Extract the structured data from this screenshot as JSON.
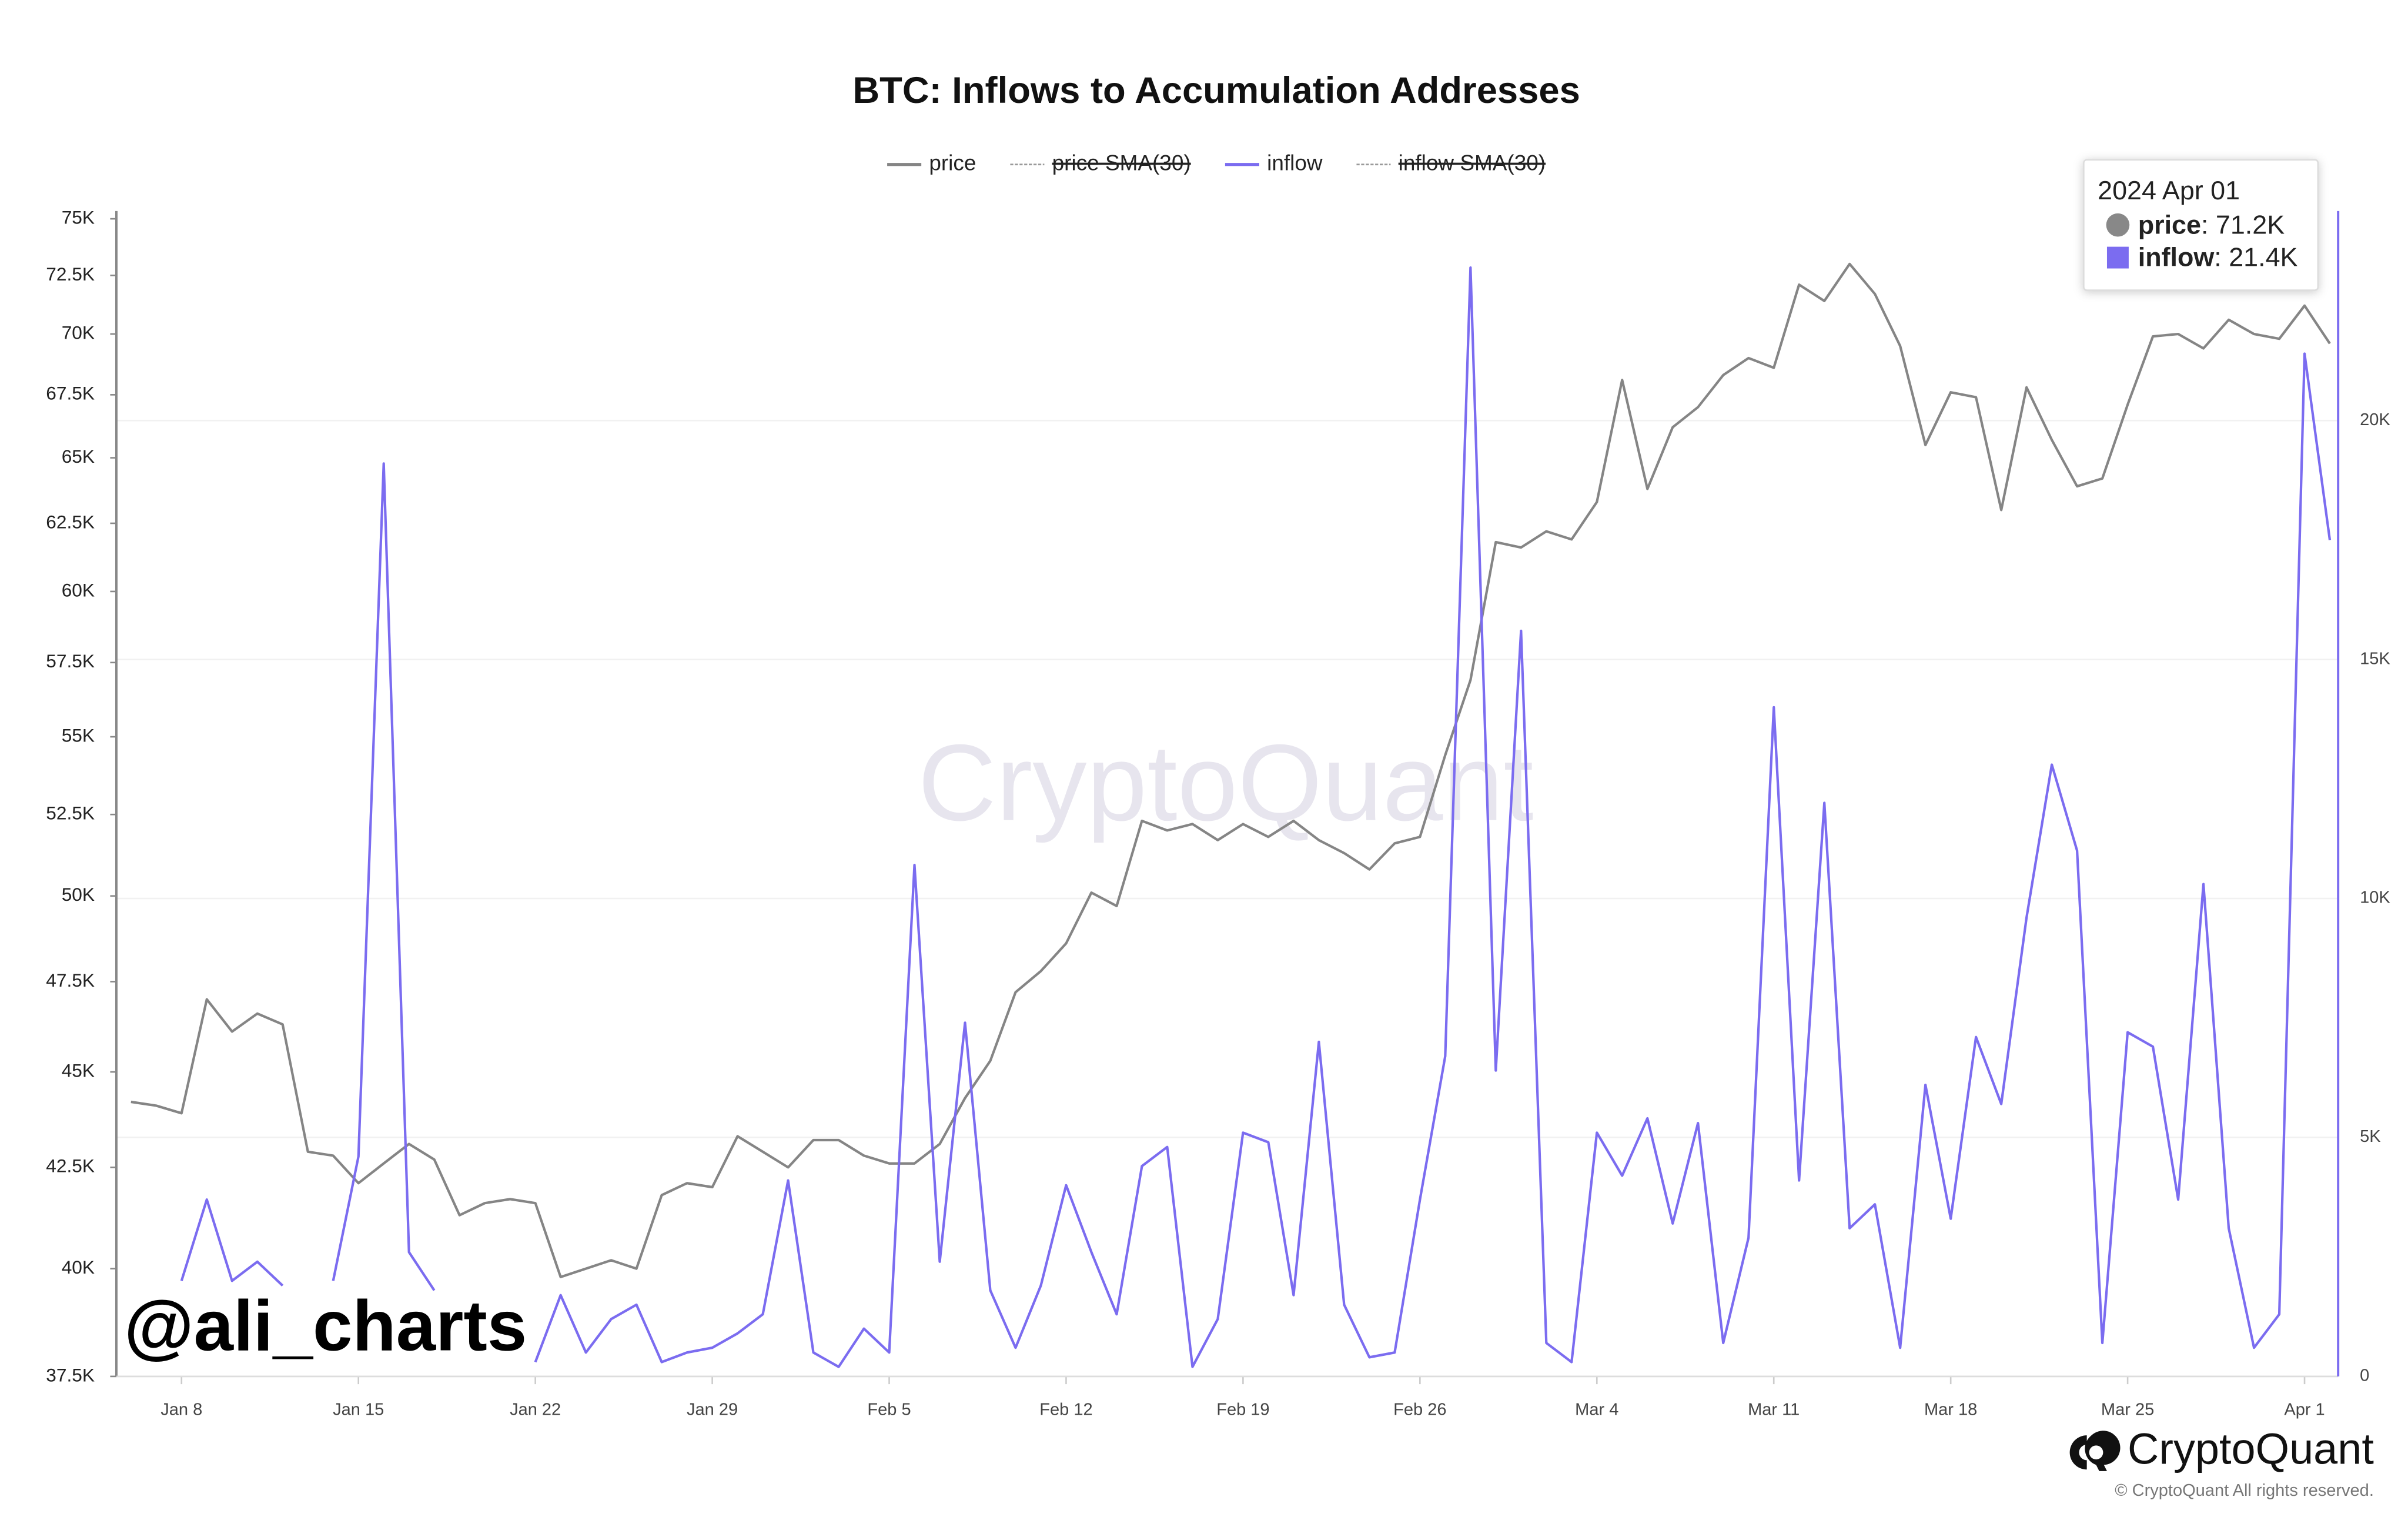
{
  "chart_data": {
    "type": "line",
    "title": "BTC: Inflows to Accumulation Addresses",
    "categories": [
      null,
      null,
      "Jan 8",
      null,
      null,
      null,
      null,
      null,
      null,
      "Jan 15",
      null,
      null,
      null,
      null,
      null,
      null,
      "Jan 22",
      null,
      null,
      null,
      null,
      null,
      null,
      "Jan 29",
      null,
      null,
      null,
      null,
      null,
      null,
      "Feb 5",
      null,
      null,
      null,
      null,
      null,
      null,
      "Feb 12",
      null,
      null,
      null,
      null,
      null,
      null,
      "Feb 19",
      null,
      null,
      null,
      null,
      null,
      null,
      "Feb 26",
      null,
      null,
      null,
      null,
      null,
      null,
      "Mar 4",
      null,
      null,
      null,
      null,
      null,
      null,
      "Mar 11",
      null,
      null,
      null,
      null,
      null,
      null,
      "Mar 18",
      null,
      null,
      null,
      null,
      null,
      null,
      "Mar 25",
      null,
      null,
      null,
      null,
      null,
      null,
      "Apr 1",
      null
    ],
    "series": [
      {
        "name": "price",
        "color": "#858585",
        "axis": "y",
        "values": [
          44200,
          44100,
          43900,
          47000,
          46100,
          46600,
          46300,
          42900,
          42800,
          42100,
          42600,
          43100,
          42700,
          41300,
          41600,
          41700,
          41600,
          39800,
          40000,
          40200,
          40000,
          41800,
          42100,
          42000,
          43300,
          42900,
          42500,
          43200,
          43200,
          42800,
          42600,
          42600,
          43100,
          44300,
          45300,
          47200,
          47800,
          48600,
          50100,
          49700,
          52300,
          52000,
          52200,
          51700,
          52200,
          51800,
          52300,
          51700,
          51300,
          50800,
          51600,
          51800,
          54400,
          56900,
          61800,
          61600,
          62200,
          61900,
          63300,
          68100,
          63800,
          66200,
          67000,
          68300,
          69000,
          68600,
          72100,
          71400,
          73000,
          71700,
          69500,
          65500,
          67600,
          67400,
          63000,
          67800,
          65700,
          63900,
          64200,
          67100,
          69900,
          70000,
          69400,
          70600,
          70000,
          69800,
          71200,
          69600
        ]
      },
      {
        "name": "price SMA(30)",
        "color": "#9a9a9a",
        "hidden": true,
        "dashed": true
      },
      {
        "name": "inflow",
        "color": "#7b6cf0",
        "axis": "y2",
        "values": [
          null,
          null,
          2000,
          3700,
          2000,
          2400,
          1900,
          null,
          2000,
          4600,
          19100,
          2600,
          1800,
          null,
          null,
          null,
          300,
          1700,
          500,
          1200,
          1500,
          300,
          500,
          600,
          900,
          1300,
          4100,
          500,
          200,
          1000,
          500,
          10700,
          2400,
          7400,
          1800,
          600,
          1900,
          4000,
          2600,
          1300,
          4400,
          4800,
          200,
          1200,
          5100,
          4900,
          1700,
          7000,
          1500,
          400,
          500,
          3700,
          6700,
          23200,
          6400,
          15600,
          700,
          300,
          5100,
          4200,
          5400,
          3200,
          5300,
          700,
          2900,
          14000,
          4100,
          12000,
          3100,
          3600,
          600,
          6100,
          3300,
          7100,
          5700,
          9600,
          12800,
          11000,
          700,
          7200,
          6900,
          3700,
          10300,
          3100,
          600,
          1300,
          21400,
          17500
        ]
      },
      {
        "name": "inflow SMA(30)",
        "color": "#9a9a9a",
        "hidden": true,
        "dashed": true
      }
    ],
    "ylim": [
      37500,
      75000
    ],
    "log_y": true,
    "yticks": [
      {
        "value": 37500,
        "label": "37.5K"
      },
      {
        "value": 40000,
        "label": "40K"
      },
      {
        "value": 42500,
        "label": "42.5K"
      },
      {
        "value": 45000,
        "label": "45K"
      },
      {
        "value": 47500,
        "label": "47.5K"
      },
      {
        "value": 50000,
        "label": "50K"
      },
      {
        "value": 52500,
        "label": "52.5K"
      },
      {
        "value": 55000,
        "label": "55K"
      },
      {
        "value": 57500,
        "label": "57.5K"
      },
      {
        "value": 60000,
        "label": "60K"
      },
      {
        "value": 62500,
        "label": "62.5K"
      },
      {
        "value": 65000,
        "label": "65K"
      },
      {
        "value": 67500,
        "label": "67.5K"
      },
      {
        "value": 70000,
        "label": "70K"
      },
      {
        "value": 72500,
        "label": "72.5K"
      },
      {
        "value": 75000,
        "label": "75K"
      }
    ],
    "y2lim": [
      0,
      24221
    ],
    "y2ticks": [
      0,
      {
        "value": 5000,
        "label": "5K"
      },
      {
        "value": 10000,
        "label": "10K"
      },
      {
        "value": 15000,
        "label": "15K"
      },
      {
        "value": 20000,
        "label": "20K"
      }
    ],
    "grid": true,
    "tooltip": {
      "date": "2024 Apr 01",
      "rows": [
        {
          "label": "price",
          "text": ": 71.2K"
        },
        {
          "label": "inflow",
          "text": ": 21.4K"
        }
      ]
    },
    "watermark": "CryptoQuant",
    "annotation": "@ali_charts",
    "brand": "CryptoQuant",
    "copyright": "© CryptoQuant All rights reserved."
  }
}
